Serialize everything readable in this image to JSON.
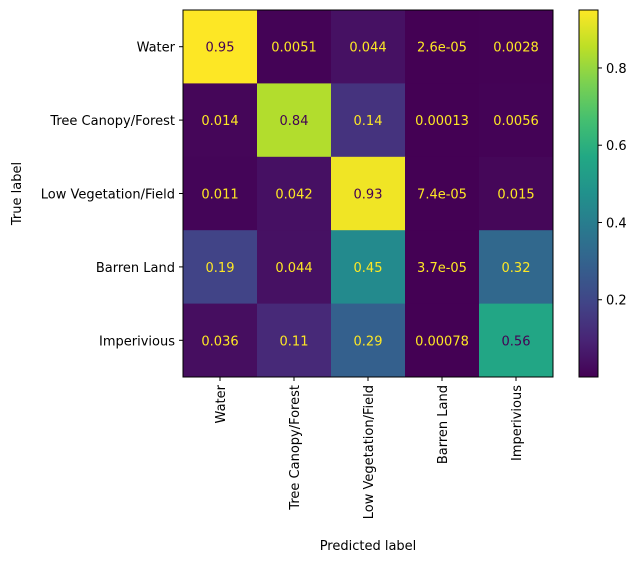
{
  "chart_data": {
    "type": "heatmap",
    "title": "",
    "xlabel": "Predicted label",
    "ylabel": "True label",
    "row_categories": [
      "Water",
      "Tree Canopy/Forest",
      "Low Vegetation/Field",
      "Barren Land",
      "Imperivious"
    ],
    "col_categories": [
      "Water",
      "Tree Canopy/Forest",
      "Low Vegetation/Field",
      "Barren Land",
      "Imperivious"
    ],
    "values": [
      [
        0.95,
        0.0051,
        0.044,
        2.6e-05,
        0.0028
      ],
      [
        0.014,
        0.84,
        0.14,
        0.00013,
        0.0056
      ],
      [
        0.011,
        0.042,
        0.93,
        7.4e-05,
        0.015
      ],
      [
        0.19,
        0.044,
        0.45,
        3.7e-05,
        0.32
      ],
      [
        0.036,
        0.11,
        0.29,
        0.00078,
        0.56
      ]
    ],
    "cell_labels": [
      [
        "0.95",
        "0.0051",
        "0.044",
        "2.6e-05",
        "0.0028"
      ],
      [
        "0.014",
        "0.84",
        "0.14",
        "0.00013",
        "0.0056"
      ],
      [
        "0.011",
        "0.042",
        "0.93",
        "7.4e-05",
        "0.015"
      ],
      [
        "0.19",
        "0.044",
        "0.45",
        "3.7e-05",
        "0.32"
      ],
      [
        "0.036",
        "0.11",
        "0.29",
        "0.00078",
        "0.56"
      ]
    ],
    "colormap": "viridis",
    "vmin": 2.6e-05,
    "vmax": 0.95,
    "colorbar": {
      "ticks": [
        0.2,
        0.4,
        0.6,
        0.8
      ],
      "tick_labels": [
        "0.2",
        "0.4",
        "0.6",
        "0.8"
      ]
    },
    "text_color_dark_bg": "#fde725",
    "text_color_light_bg": "#440154"
  }
}
